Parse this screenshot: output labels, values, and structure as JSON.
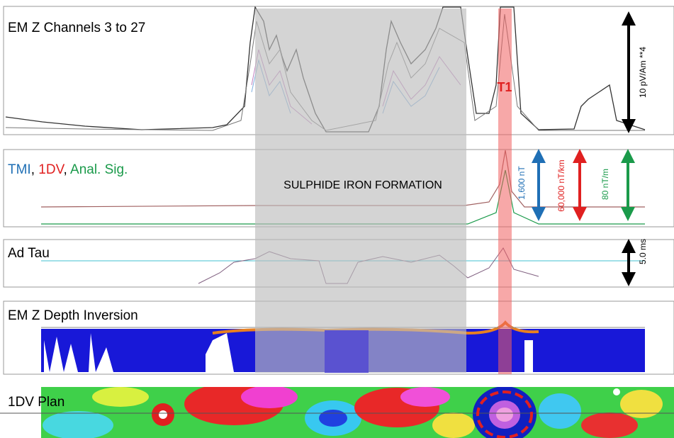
{
  "panels": [
    {
      "title": "EM Z Channels 3 to 27"
    },
    {
      "title_parts": [
        {
          "text": "TMI",
          "color": "#1f6fb5"
        },
        {
          "text": ", ",
          "color": "#000000"
        },
        {
          "text": "1DV",
          "color": "#e02020"
        },
        {
          "text": ", ",
          "color": "#000000"
        },
        {
          "text": "Anal. Sig.",
          "color": "#1a9a4a"
        }
      ]
    },
    {
      "title": "Ad Tau"
    },
    {
      "title": "EM Z Depth Inversion"
    },
    {
      "title": "1DV Plan"
    }
  ],
  "annotations": {
    "zone": "SULPHIDE IRON FORMATION",
    "target": "T1"
  },
  "scales": [
    {
      "label": "10 pV/Am **4",
      "color": "#000000"
    },
    {
      "label": "1,600 nT",
      "color": "#1f6fb5"
    },
    {
      "label": "60,000 nT/km",
      "color": "#e02020"
    },
    {
      "label": "80 nT/m",
      "color": "#1a9a4a"
    },
    {
      "label": "5.0 ms",
      "color": "#000000"
    }
  ]
}
